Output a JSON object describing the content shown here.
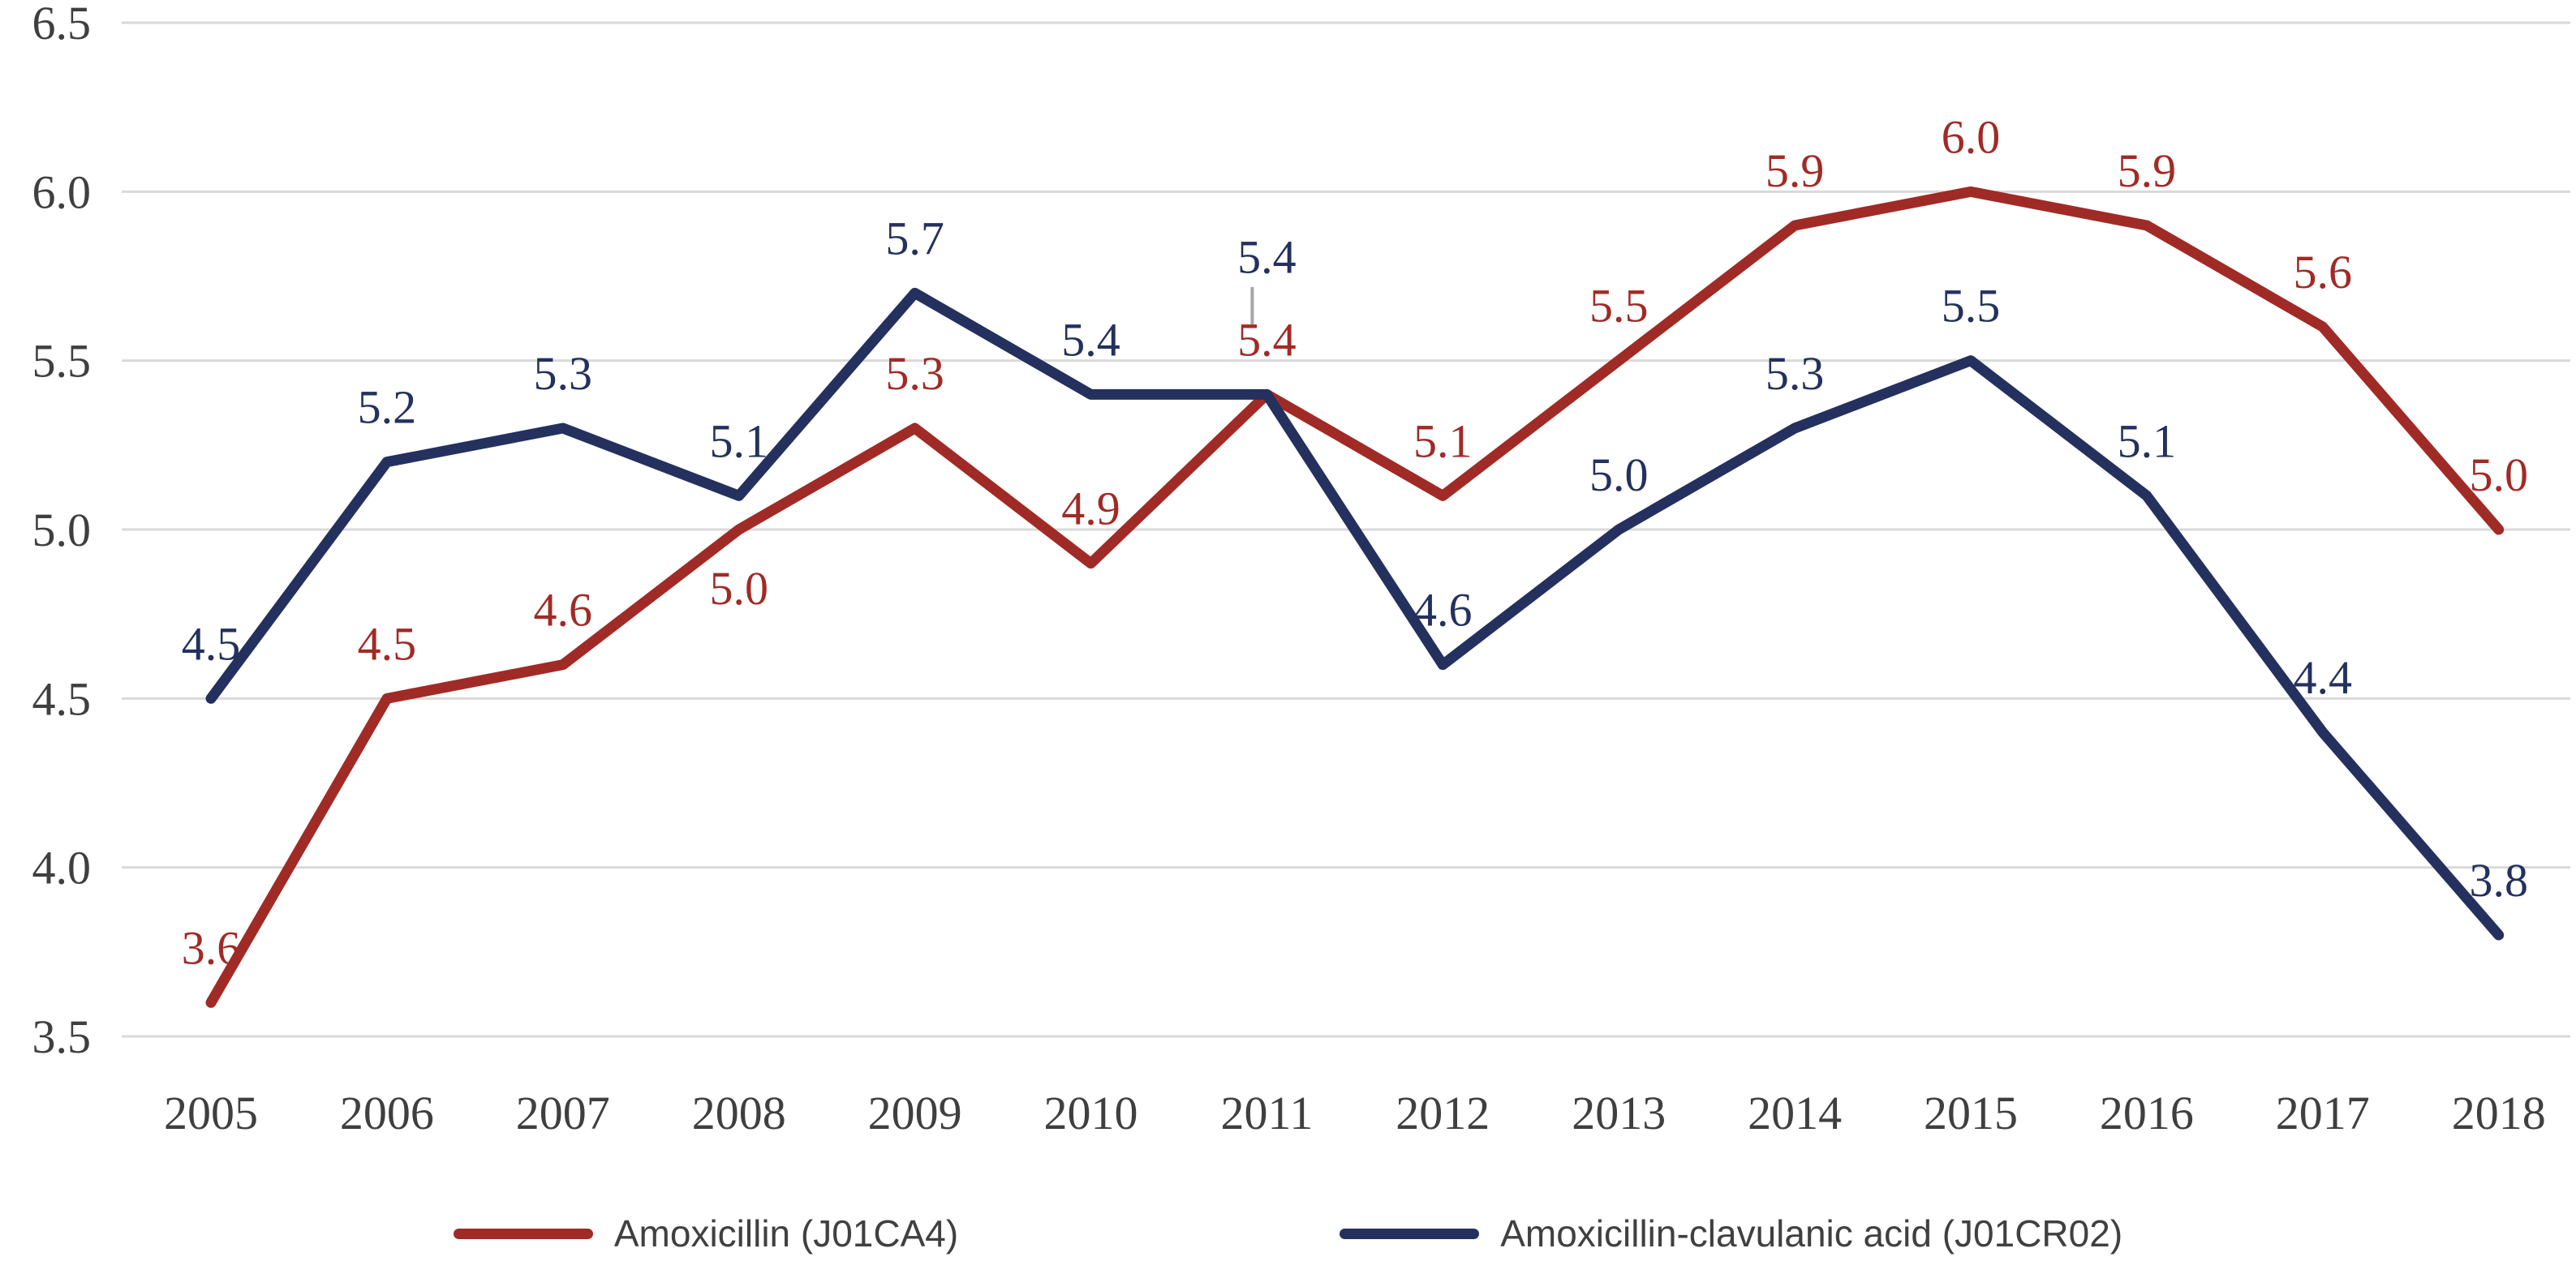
{
  "chart_data": {
    "type": "line",
    "title": "",
    "xlabel": "",
    "ylabel": "",
    "categories": [
      "2005",
      "2006",
      "2007",
      "2008",
      "2009",
      "2010",
      "2011",
      "2012",
      "2013",
      "2014",
      "2015",
      "2016",
      "2017",
      "2018"
    ],
    "series": [
      {
        "name": "Amoxicillin (J01CA4)",
        "color": "#A02B26",
        "values": [
          3.6,
          4.5,
          4.6,
          5.0,
          5.3,
          4.9,
          5.4,
          5.1,
          5.5,
          5.9,
          6.0,
          5.9,
          5.6,
          5.0
        ]
      },
      {
        "name": "Amoxicillin-clavulanic acid (J01CR02)",
        "color": "#24315E",
        "values": [
          4.5,
          5.2,
          5.3,
          5.1,
          5.7,
          5.4,
          5.4,
          4.6,
          5.0,
          5.3,
          5.5,
          5.1,
          4.4,
          3.8
        ]
      }
    ],
    "ylim": [
      3.5,
      6.5
    ],
    "yticks": [
      6.5,
      6.0,
      5.5,
      5.0,
      4.5,
      4.0,
      3.5
    ],
    "grid": "horizontal",
    "gridline_color": "#D9D9D9",
    "axis_text_color": "#3F3F3F",
    "legend_position": "bottom",
    "label_offsets": {
      "0": {
        "3": 92
      },
      "1": {
        "6": -150
      }
    },
    "annotation_tick": {
      "x_index": 6,
      "color": "#A6A6A6"
    }
  }
}
